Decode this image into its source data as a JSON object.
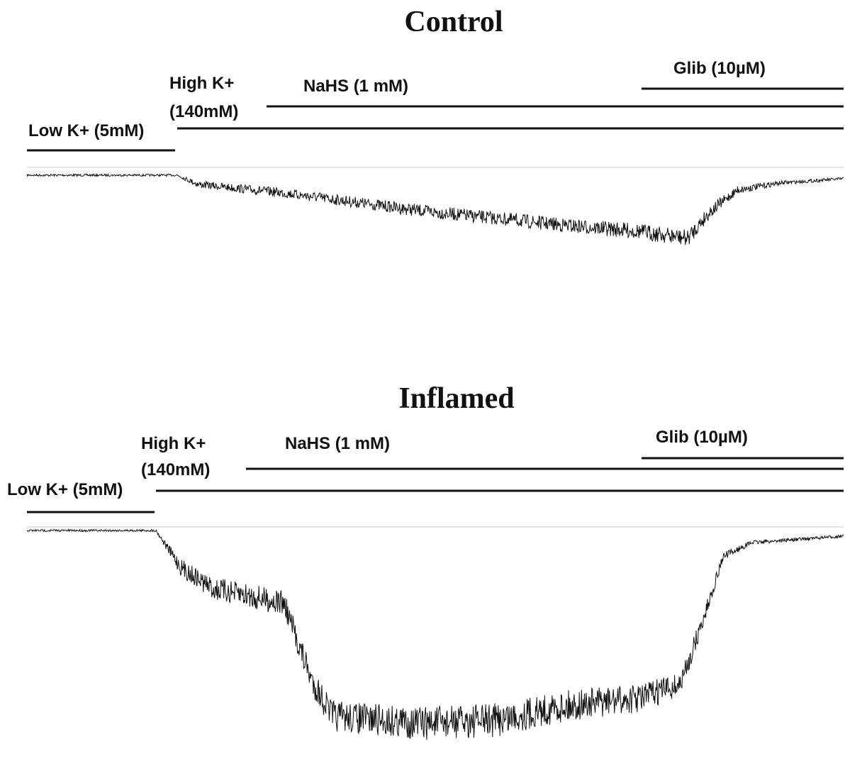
{
  "panels": [
    {
      "title": "Control",
      "glib": "Glib (10µM)",
      "nahs": "NaHS (1 mM)",
      "high_k_1": "High K+",
      "high_k_2": "(140mM)",
      "low_k": "Low K+ (5mM)"
    },
    {
      "title": "Inflamed",
      "glib": "Glib (10µM)",
      "nahs": "NaHS (1 mM)",
      "high_k_1": "High K+",
      "high_k_2": "(140mM)",
      "low_k": "Low K+ (5mM)"
    }
  ]
}
